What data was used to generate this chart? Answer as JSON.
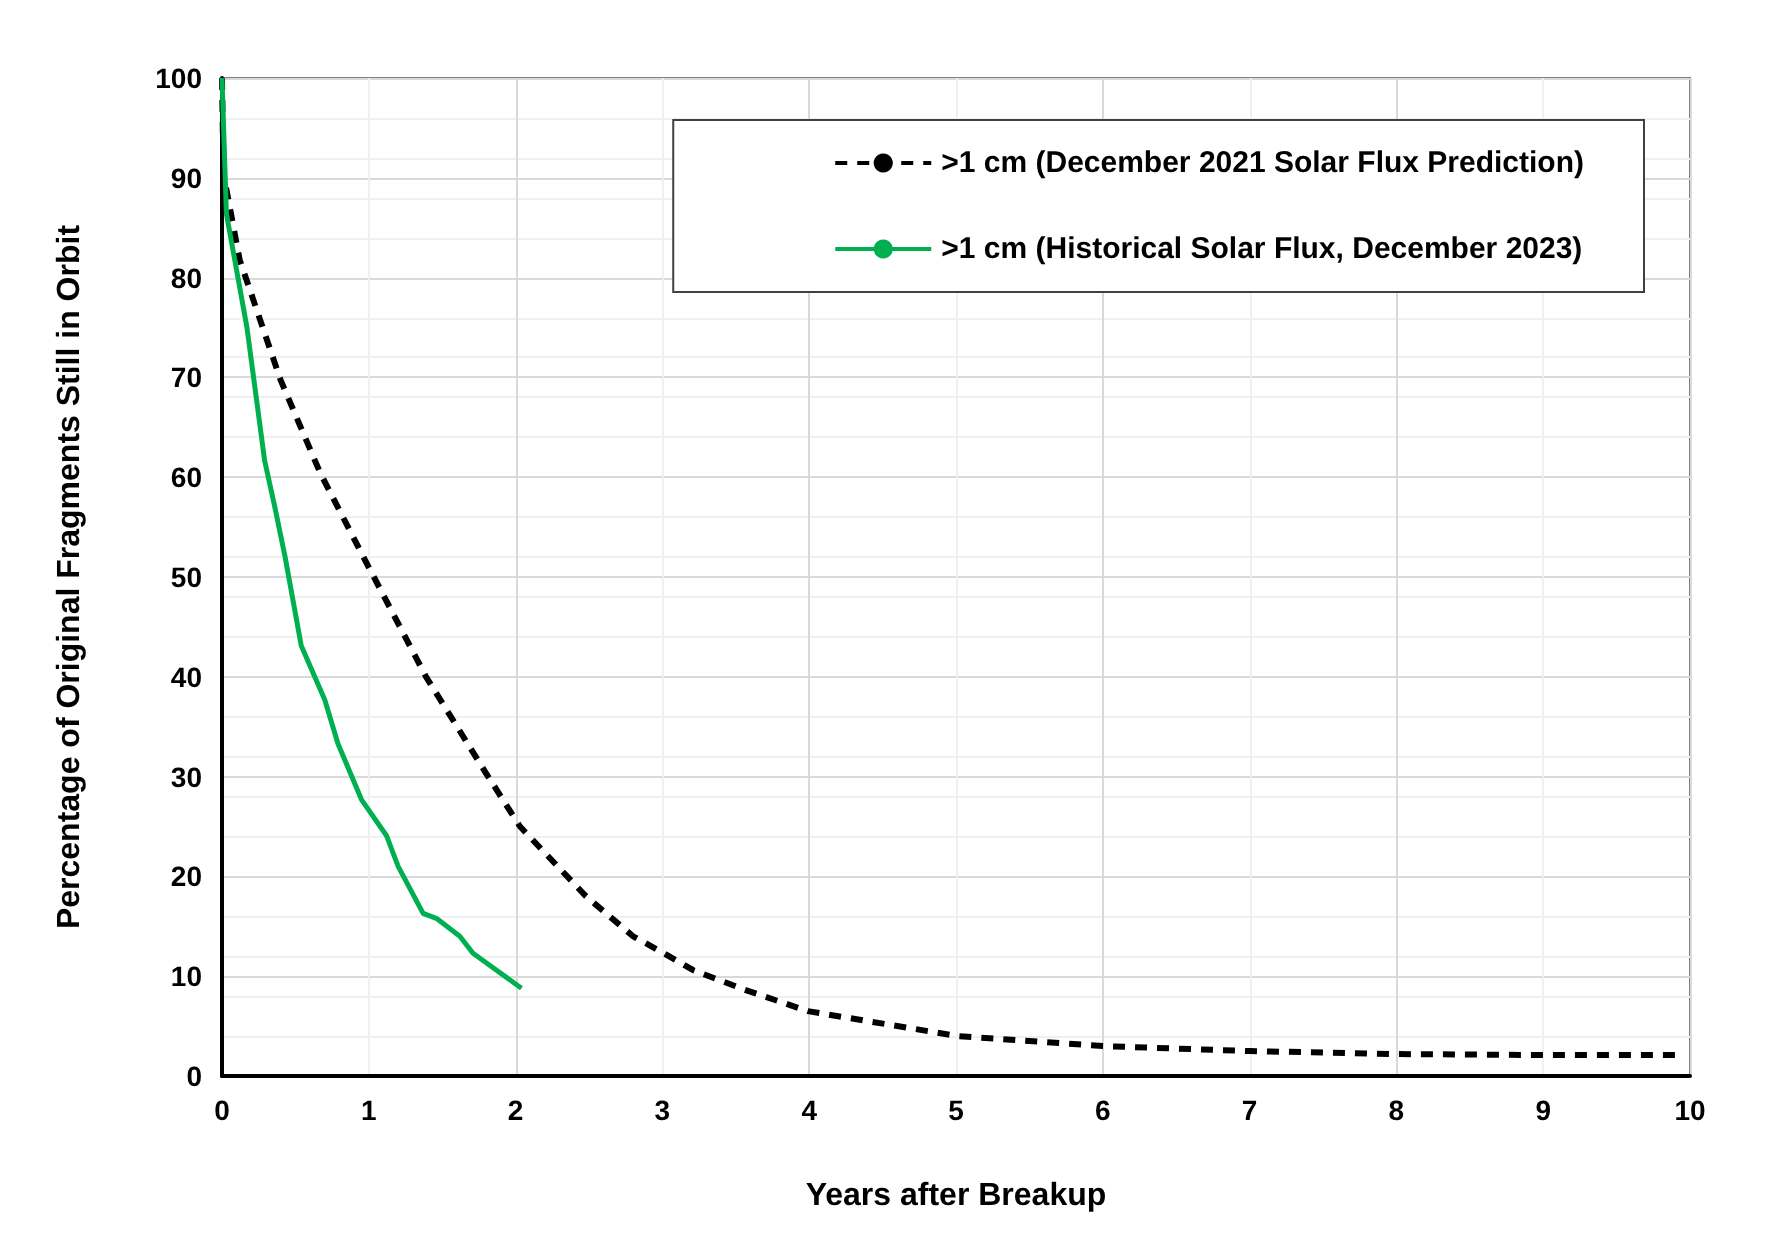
{
  "chart_data": {
    "type": "line",
    "xlabel": "Years after Breakup",
    "ylabel": "Percentage of Original Fragments Still in Orbit",
    "xlim": [
      0,
      10
    ],
    "ylim": [
      0,
      100
    ],
    "xticks": [
      0,
      1,
      2,
      3,
      4,
      5,
      6,
      7,
      8,
      9,
      10
    ],
    "yticks": [
      0,
      10,
      20,
      30,
      40,
      50,
      60,
      70,
      80,
      90,
      100
    ],
    "grid": true,
    "legend": "top right",
    "marker": "none",
    "series": [
      {
        "name": ">1 cm (December 2021 Solar Flux Prediction)",
        "color": "#000000",
        "line_style": "dashed",
        "x": [
          0,
          0.01,
          0.12,
          0.4,
          0.67,
          0.96,
          1.39,
          1.8,
          2.03,
          2.48,
          2.8,
          3.01,
          3.21,
          3.55,
          3.99,
          5.01,
          6.0,
          7.0,
          8.0,
          9.0,
          9.92
        ],
        "values": [
          100,
          90.4,
          81.8,
          69.7,
          60.4,
          52.1,
          40.0,
          30.3,
          25.0,
          18.0,
          14.0,
          12.3,
          10.6,
          8.7,
          6.5,
          4.0,
          3.0,
          2.5,
          2.2,
          2.1,
          2.1
        ]
      },
      {
        "name": ">1 cm (Historical Solar Flux, December 2023)",
        "color": "#00b050",
        "line_style": "solid",
        "x": [
          0,
          0.03,
          0.17,
          0.29,
          0.36,
          0.43,
          0.54,
          0.7,
          0.79,
          0.95,
          1.12,
          1.2,
          1.37,
          1.46,
          1.62,
          1.71,
          1.87,
          2.04
        ],
        "values": [
          100,
          86.4,
          75,
          61.7,
          57,
          52,
          43.1,
          37.7,
          33.3,
          27.7,
          24.1,
          21.0,
          16.3,
          15.8,
          14.0,
          12.3,
          10.6,
          8.8
        ]
      }
    ]
  }
}
